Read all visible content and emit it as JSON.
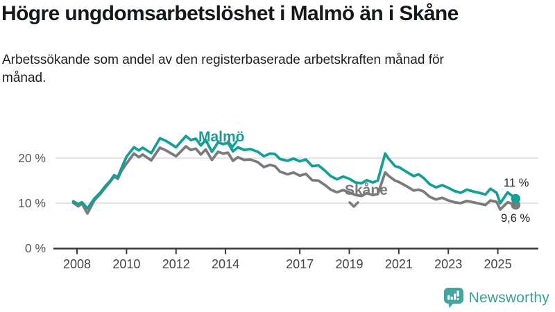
{
  "header": {
    "title": "Högre ungdomsarbetslöshet i Malmö än i Skåne",
    "subtitle": "Arbetssökande som andel av den registerbaserade arbetskraften månad för månad."
  },
  "colors": {
    "malmo": "#14a096",
    "skane": "#7b7b7b",
    "grid": "#dcdcdc",
    "axis": "#383838",
    "x_tick_label": "#444444",
    "y_tick_label": "#555555",
    "end_label": "#222222",
    "logo": "#3fa79f",
    "logo_text": "#38a29a"
  },
  "chart_data": {
    "type": "line",
    "unit": "%",
    "grid": "horizontal-only",
    "legend_position": "inline-labels",
    "x_range": [
      2007.8,
      2026.0
    ],
    "y_range": [
      0,
      26
    ],
    "x_ticks": [
      {
        "label": "2008",
        "year": 2008
      },
      {
        "label": "2010",
        "year": 2010
      },
      {
        "label": "2012",
        "year": 2012
      },
      {
        "label": "2014",
        "year": 2014
      },
      {
        "label": "2017",
        "year": 2017
      },
      {
        "label": "2019",
        "year": 2019
      },
      {
        "label": "2021",
        "year": 2021
      },
      {
        "label": "2023",
        "year": 2023
      },
      {
        "label": "2025",
        "year": 2025
      }
    ],
    "y_ticks": [
      {
        "label": "0 %",
        "value": 0
      },
      {
        "label": "10 %",
        "value": 10
      },
      {
        "label": "20 %",
        "value": 20
      }
    ],
    "series": [
      {
        "name": "Skåne",
        "color_key": "skane",
        "end_label": "9,6 %",
        "end_value": 9.6,
        "points": [
          [
            2007.85,
            10.1
          ],
          [
            2008.05,
            9.3
          ],
          [
            2008.2,
            9.9
          ],
          [
            2008.42,
            7.7
          ],
          [
            2008.7,
            10.6
          ],
          [
            2008.95,
            12.1
          ],
          [
            2009.15,
            13.5
          ],
          [
            2009.35,
            14.8
          ],
          [
            2009.5,
            15.9
          ],
          [
            2009.65,
            15.4
          ],
          [
            2009.8,
            17.2
          ],
          [
            2010.0,
            18.8
          ],
          [
            2010.3,
            21.0
          ],
          [
            2010.5,
            20.2
          ],
          [
            2010.65,
            20.8
          ],
          [
            2011.0,
            19.5
          ],
          [
            2011.35,
            22.3
          ],
          [
            2011.6,
            21.7
          ],
          [
            2012.0,
            20.4
          ],
          [
            2012.4,
            22.6
          ],
          [
            2012.6,
            21.8
          ],
          [
            2012.8,
            22.1
          ],
          [
            2013.0,
            20.8
          ],
          [
            2013.2,
            21.9
          ],
          [
            2013.45,
            19.6
          ],
          [
            2013.7,
            21.4
          ],
          [
            2013.9,
            21.0
          ],
          [
            2014.1,
            21.2
          ],
          [
            2014.3,
            19.4
          ],
          [
            2014.5,
            20.2
          ],
          [
            2014.75,
            19.6
          ],
          [
            2015.0,
            19.7
          ],
          [
            2015.3,
            19.1
          ],
          [
            2015.55,
            18.0
          ],
          [
            2015.8,
            18.5
          ],
          [
            2016.0,
            18.2
          ],
          [
            2016.2,
            17.0
          ],
          [
            2016.5,
            16.4
          ],
          [
            2016.75,
            16.8
          ],
          [
            2017.0,
            16.1
          ],
          [
            2017.25,
            16.5
          ],
          [
            2017.5,
            15.1
          ],
          [
            2017.75,
            15.0
          ],
          [
            2018.0,
            14.1
          ],
          [
            2018.25,
            13.0
          ],
          [
            2018.5,
            12.4
          ],
          [
            2018.75,
            12.9
          ],
          [
            2019.0,
            12.4
          ],
          [
            2019.25,
            11.8
          ],
          [
            2019.5,
            11.6
          ],
          [
            2019.7,
            12.2
          ],
          [
            2019.95,
            11.8
          ],
          [
            2020.15,
            12.0
          ],
          [
            2020.45,
            16.8
          ],
          [
            2020.6,
            16.0
          ],
          [
            2020.85,
            15.0
          ],
          [
            2021.0,
            14.7
          ],
          [
            2021.3,
            13.8
          ],
          [
            2021.6,
            12.8
          ],
          [
            2021.8,
            13.0
          ],
          [
            2022.0,
            12.6
          ],
          [
            2022.25,
            11.4
          ],
          [
            2022.5,
            10.8
          ],
          [
            2022.75,
            11.2
          ],
          [
            2023.0,
            10.6
          ],
          [
            2023.25,
            10.2
          ],
          [
            2023.5,
            10.0
          ],
          [
            2023.75,
            10.5
          ],
          [
            2024.0,
            10.2
          ],
          [
            2024.25,
            9.9
          ],
          [
            2024.5,
            9.6
          ],
          [
            2024.7,
            10.6
          ],
          [
            2024.95,
            10.3
          ],
          [
            2025.1,
            8.6
          ],
          [
            2025.4,
            10.2
          ],
          [
            2025.72,
            9.6
          ]
        ]
      },
      {
        "name": "Malmö",
        "color_key": "malmo",
        "end_label": "11 %",
        "end_value": 11,
        "points": [
          [
            2007.85,
            10.4
          ],
          [
            2008.05,
            9.8
          ],
          [
            2008.2,
            10.2
          ],
          [
            2008.42,
            8.8
          ],
          [
            2008.7,
            11.0
          ],
          [
            2008.95,
            12.4
          ],
          [
            2009.15,
            13.8
          ],
          [
            2009.35,
            15.0
          ],
          [
            2009.5,
            16.2
          ],
          [
            2009.65,
            15.8
          ],
          [
            2009.8,
            17.8
          ],
          [
            2010.0,
            20.3
          ],
          [
            2010.3,
            22.4
          ],
          [
            2010.5,
            21.7
          ],
          [
            2010.65,
            22.3
          ],
          [
            2011.0,
            21.1
          ],
          [
            2011.35,
            24.4
          ],
          [
            2011.6,
            23.8
          ],
          [
            2012.0,
            22.4
          ],
          [
            2012.4,
            24.9
          ],
          [
            2012.6,
            24.0
          ],
          [
            2012.8,
            24.3
          ],
          [
            2013.0,
            22.8
          ],
          [
            2013.2,
            24.0
          ],
          [
            2013.45,
            21.4
          ],
          [
            2013.7,
            23.5
          ],
          [
            2013.9,
            23.1
          ],
          [
            2014.1,
            23.4
          ],
          [
            2014.3,
            21.5
          ],
          [
            2014.5,
            22.4
          ],
          [
            2014.75,
            21.8
          ],
          [
            2015.0,
            22.0
          ],
          [
            2015.3,
            21.4
          ],
          [
            2015.55,
            20.4
          ],
          [
            2015.8,
            21.0
          ],
          [
            2016.0,
            20.9
          ],
          [
            2016.2,
            19.8
          ],
          [
            2016.5,
            19.4
          ],
          [
            2016.75,
            19.9
          ],
          [
            2017.0,
            19.3
          ],
          [
            2017.25,
            19.7
          ],
          [
            2017.5,
            18.2
          ],
          [
            2017.75,
            18.4
          ],
          [
            2018.0,
            17.3
          ],
          [
            2018.25,
            16.0
          ],
          [
            2018.5,
            15.3
          ],
          [
            2018.75,
            15.9
          ],
          [
            2019.0,
            15.4
          ],
          [
            2019.25,
            14.6
          ],
          [
            2019.5,
            14.4
          ],
          [
            2019.7,
            15.1
          ],
          [
            2019.95,
            14.6
          ],
          [
            2020.15,
            15.0
          ],
          [
            2020.45,
            21.0
          ],
          [
            2020.6,
            19.8
          ],
          [
            2020.85,
            18.2
          ],
          [
            2021.0,
            18.0
          ],
          [
            2021.3,
            17.0
          ],
          [
            2021.6,
            16.0
          ],
          [
            2021.8,
            16.4
          ],
          [
            2022.0,
            15.6
          ],
          [
            2022.25,
            14.2
          ],
          [
            2022.5,
            13.5
          ],
          [
            2022.75,
            14.0
          ],
          [
            2023.0,
            13.4
          ],
          [
            2023.25,
            12.7
          ],
          [
            2023.5,
            12.3
          ],
          [
            2023.75,
            13.0
          ],
          [
            2024.0,
            12.6
          ],
          [
            2024.25,
            12.3
          ],
          [
            2024.5,
            11.9
          ],
          [
            2024.7,
            13.2
          ],
          [
            2024.95,
            12.3
          ],
          [
            2025.1,
            10.0
          ],
          [
            2025.4,
            12.4
          ],
          [
            2025.72,
            11.0
          ]
        ]
      }
    ]
  },
  "footer": {
    "brand": "Newsworthy"
  }
}
